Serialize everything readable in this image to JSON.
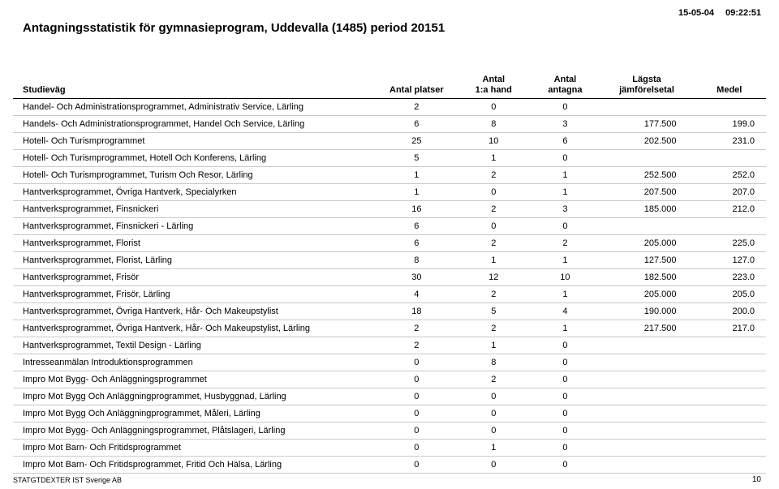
{
  "header": {
    "date": "15-05-04",
    "time": "09:22:51",
    "title": "Antagningsstatistik för gymnasieprogram,  Uddevalla (1485) period 20151"
  },
  "columns": {
    "study": "Studieväg",
    "platser": "Antal platser",
    "firsthand_l1": "Antal",
    "firsthand_l2": "1:a hand",
    "antagna_l1": "Antal",
    "antagna_l2": "antagna",
    "lagsta_l1": "Lägsta",
    "lagsta_l2": "jämförelsetal",
    "medel": "Medel"
  },
  "rows": [
    {
      "study": "Handel- Och Administrationsprogrammet, Administrativ Service, Lärling",
      "platser": "2",
      "firsthand": "0",
      "antagna": "0",
      "lagsta": "",
      "medel": ""
    },
    {
      "study": "Handels- Och Administrationsprogrammet, Handel Och Service, Lärling",
      "platser": "6",
      "firsthand": "8",
      "antagna": "3",
      "lagsta": "177.500",
      "medel": "199.0"
    },
    {
      "study": "Hotell- Och Turismprogrammet",
      "platser": "25",
      "firsthand": "10",
      "antagna": "6",
      "lagsta": "202.500",
      "medel": "231.0"
    },
    {
      "study": "Hotell- Och Turismprogrammet, Hotell Och Konferens, Lärling",
      "platser": "5",
      "firsthand": "1",
      "antagna": "0",
      "lagsta": "",
      "medel": ""
    },
    {
      "study": "Hotell- Och Turismprogrammet, Turism Och Resor, Lärling",
      "platser": "1",
      "firsthand": "2",
      "antagna": "1",
      "lagsta": "252.500",
      "medel": "252.0"
    },
    {
      "study": "Hantverksprogrammet, Övriga Hantverk, Specialyrken",
      "platser": "1",
      "firsthand": "0",
      "antagna": "1",
      "lagsta": "207.500",
      "medel": "207.0"
    },
    {
      "study": "Hantverksprogrammet, Finsnickeri",
      "platser": "16",
      "firsthand": "2",
      "antagna": "3",
      "lagsta": "185.000",
      "medel": "212.0"
    },
    {
      "study": "Hantverksprogrammet, Finsnickeri - Lärling",
      "platser": "6",
      "firsthand": "0",
      "antagna": "0",
      "lagsta": "",
      "medel": ""
    },
    {
      "study": "Hantverksprogrammet, Florist",
      "platser": "6",
      "firsthand": "2",
      "antagna": "2",
      "lagsta": "205.000",
      "medel": "225.0"
    },
    {
      "study": "Hantverksprogrammet, Florist, Lärling",
      "platser": "8",
      "firsthand": "1",
      "antagna": "1",
      "lagsta": "127.500",
      "medel": "127.0"
    },
    {
      "study": "Hantverksprogrammet, Frisör",
      "platser": "30",
      "firsthand": "12",
      "antagna": "10",
      "lagsta": "182.500",
      "medel": "223.0"
    },
    {
      "study": "Hantverksprogrammet, Frisör, Lärling",
      "platser": "4",
      "firsthand": "2",
      "antagna": "1",
      "lagsta": "205.000",
      "medel": "205.0"
    },
    {
      "study": "Hantverksprogrammet, Övriga Hantverk, Hår- Och Makeupstylist",
      "platser": "18",
      "firsthand": "5",
      "antagna": "4",
      "lagsta": "190.000",
      "medel": "200.0"
    },
    {
      "study": "Hantverksprogrammet, Övriga Hantverk, Hår- Och Makeupstylist, Lärling",
      "platser": "2",
      "firsthand": "2",
      "antagna": "1",
      "lagsta": "217.500",
      "medel": "217.0"
    },
    {
      "study": "Hantverksprogrammet, Textil Design - Lärling",
      "platser": "2",
      "firsthand": "1",
      "antagna": "0",
      "lagsta": "",
      "medel": ""
    },
    {
      "study": "Intresseanmälan Introduktionsprogrammen",
      "platser": "0",
      "firsthand": "8",
      "antagna": "0",
      "lagsta": "",
      "medel": ""
    },
    {
      "study": "Impro Mot Bygg- Och Anläggningsprogrammet",
      "platser": "0",
      "firsthand": "2",
      "antagna": "0",
      "lagsta": "",
      "medel": ""
    },
    {
      "study": "Impro Mot Bygg Och Anläggningprogrammet, Husbyggnad, Lärling",
      "platser": "0",
      "firsthand": "0",
      "antagna": "0",
      "lagsta": "",
      "medel": ""
    },
    {
      "study": "Impro Mot Bygg Och Anläggningprogrammet, Måleri, Lärling",
      "platser": "0",
      "firsthand": "0",
      "antagna": "0",
      "lagsta": "",
      "medel": ""
    },
    {
      "study": "Impro Mot Bygg- Och Anläggningsprogrammet, Plåtslageri, Lärling",
      "platser": "0",
      "firsthand": "0",
      "antagna": "0",
      "lagsta": "",
      "medel": ""
    },
    {
      "study": "Impro Mot Barn- Och Fritidsprogrammet",
      "platser": "0",
      "firsthand": "1",
      "antagna": "0",
      "lagsta": "",
      "medel": ""
    },
    {
      "study": "Impro Mot Barn- Och Fritidsprogrammet, Fritid Och Hälsa, Lärling",
      "platser": "0",
      "firsthand": "0",
      "antagna": "0",
      "lagsta": "",
      "medel": ""
    }
  ],
  "footer": {
    "company": "STATGTDEXTER IST Sverige AB",
    "page": "10"
  }
}
